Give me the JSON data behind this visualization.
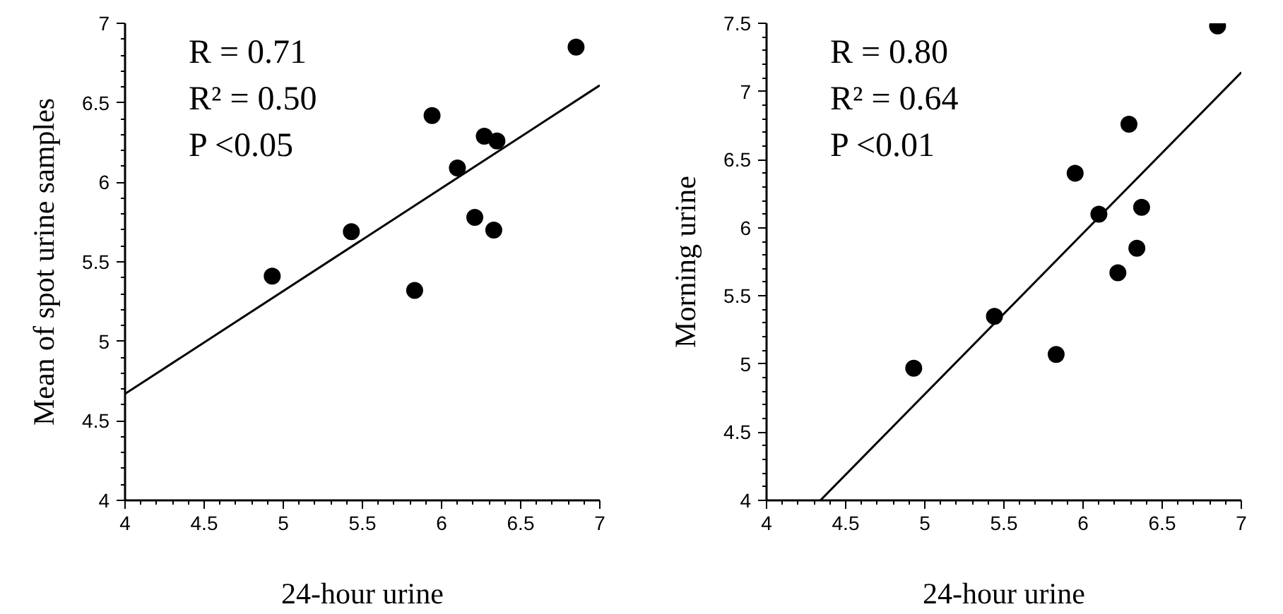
{
  "chart_data": [
    {
      "type": "scatter",
      "xlabel": "24-hour urine",
      "ylabel": "Mean of spot urine samples",
      "annotations": [
        "R = 0.71",
        "R² = 0.50",
        "P <0.05"
      ],
      "marker": "circle",
      "xlim": [
        4,
        7
      ],
      "ylim": [
        4,
        7
      ],
      "xticks": [
        4,
        {
          "value": 4.1,
          "label": null
        },
        {
          "value": 4.2,
          "label": null
        },
        {
          "value": 4.3,
          "label": null
        },
        {
          "value": 4.4,
          "label": null
        },
        4.5,
        {
          "value": 4.6,
          "label": null
        },
        {
          "value": 4.7,
          "label": null
        },
        {
          "value": 4.8,
          "label": null
        },
        {
          "value": 4.9,
          "label": null
        },
        5,
        {
          "value": 5.1,
          "label": null
        },
        {
          "value": 5.2,
          "label": null
        },
        {
          "value": 5.3,
          "label": null
        },
        {
          "value": 5.4,
          "label": null
        },
        5.5,
        {
          "value": 5.6,
          "label": null
        },
        {
          "value": 5.7,
          "label": null
        },
        {
          "value": 5.8,
          "label": null
        },
        {
          "value": 5.9,
          "label": null
        },
        6,
        {
          "value": 6.1,
          "label": null
        },
        {
          "value": 6.2,
          "label": null
        },
        {
          "value": 6.3,
          "label": null
        },
        {
          "value": 6.4,
          "label": null
        },
        6.5,
        {
          "value": 6.6,
          "label": null
        },
        {
          "value": 6.7,
          "label": null
        },
        {
          "value": 6.8,
          "label": null
        },
        {
          "value": 6.9,
          "label": null
        },
        7
      ],
      "yticks": [
        4,
        {
          "value": 4.1,
          "label": null
        },
        {
          "value": 4.2,
          "label": null
        },
        {
          "value": 4.3,
          "label": null
        },
        {
          "value": 4.4,
          "label": null
        },
        4.5,
        {
          "value": 4.6,
          "label": null
        },
        {
          "value": 4.7,
          "label": null
        },
        {
          "value": 4.8,
          "label": null
        },
        {
          "value": 4.9,
          "label": null
        },
        5,
        {
          "value": 5.1,
          "label": null
        },
        {
          "value": 5.2,
          "label": null
        },
        {
          "value": 5.3,
          "label": null
        },
        {
          "value": 5.4,
          "label": null
        },
        5.5,
        {
          "value": 5.6,
          "label": null
        },
        {
          "value": 5.7,
          "label": null
        },
        {
          "value": 5.8,
          "label": null
        },
        {
          "value": 5.9,
          "label": null
        },
        6,
        {
          "value": 6.1,
          "label": null
        },
        {
          "value": 6.2,
          "label": null
        },
        {
          "value": 6.3,
          "label": null
        },
        {
          "value": 6.4,
          "label": null
        },
        6.5,
        {
          "value": 6.6,
          "label": null
        },
        {
          "value": 6.7,
          "label": null
        },
        {
          "value": 6.8,
          "label": null
        },
        {
          "value": 6.9,
          "label": null
        },
        7
      ],
      "series": [
        {
          "color": "#000000",
          "x": [
            4.93,
            5.43,
            5.83,
            5.94,
            6.1,
            6.21,
            6.27,
            6.35,
            6.33,
            6.85
          ],
          "values": [
            5.41,
            5.69,
            5.32,
            6.42,
            6.09,
            5.78,
            6.29,
            6.26,
            5.7,
            6.85
          ]
        },
        {
          "type": "line",
          "marker": "none",
          "color": "#000000",
          "x": [
            4,
            7
          ],
          "values": [
            4.67,
            6.61
          ]
        }
      ]
    },
    {
      "type": "scatter",
      "xlabel": "24-hour urine",
      "ylabel": "Morning urine",
      "annotations": [
        "R = 0.80",
        "R² = 0.64",
        "P <0.01"
      ],
      "marker": "circle",
      "xlim": [
        4,
        7
      ],
      "ylim": [
        4,
        7.5
      ],
      "xticks": [
        4,
        {
          "value": 4.1,
          "label": null
        },
        {
          "value": 4.2,
          "label": null
        },
        {
          "value": 4.3,
          "label": null
        },
        {
          "value": 4.4,
          "label": null
        },
        4.5,
        {
          "value": 4.6,
          "label": null
        },
        {
          "value": 4.7,
          "label": null
        },
        {
          "value": 4.8,
          "label": null
        },
        {
          "value": 4.9,
          "label": null
        },
        5,
        {
          "value": 5.1,
          "label": null
        },
        {
          "value": 5.2,
          "label": null
        },
        {
          "value": 5.3,
          "label": null
        },
        {
          "value": 5.4,
          "label": null
        },
        5.5,
        {
          "value": 5.6,
          "label": null
        },
        {
          "value": 5.7,
          "label": null
        },
        {
          "value": 5.8,
          "label": null
        },
        {
          "value": 5.9,
          "label": null
        },
        6,
        {
          "value": 6.1,
          "label": null
        },
        {
          "value": 6.2,
          "label": null
        },
        {
          "value": 6.3,
          "label": null
        },
        {
          "value": 6.4,
          "label": null
        },
        6.5,
        {
          "value": 6.6,
          "label": null
        },
        {
          "value": 6.7,
          "label": null
        },
        {
          "value": 6.8,
          "label": null
        },
        {
          "value": 6.9,
          "label": null
        },
        7
      ],
      "yticks": [
        4,
        {
          "value": 4.1,
          "label": null
        },
        {
          "value": 4.2,
          "label": null
        },
        {
          "value": 4.3,
          "label": null
        },
        {
          "value": 4.4,
          "label": null
        },
        4.5,
        {
          "value": 4.6,
          "label": null
        },
        {
          "value": 4.7,
          "label": null
        },
        {
          "value": 4.8,
          "label": null
        },
        {
          "value": 4.9,
          "label": null
        },
        5,
        {
          "value": 5.1,
          "label": null
        },
        {
          "value": 5.2,
          "label": null
        },
        {
          "value": 5.3,
          "label": null
        },
        {
          "value": 5.4,
          "label": null
        },
        5.5,
        {
          "value": 5.6,
          "label": null
        },
        {
          "value": 5.7,
          "label": null
        },
        {
          "value": 5.8,
          "label": null
        },
        {
          "value": 5.9,
          "label": null
        },
        6,
        {
          "value": 6.1,
          "label": null
        },
        {
          "value": 6.2,
          "label": null
        },
        {
          "value": 6.3,
          "label": null
        },
        {
          "value": 6.4,
          "label": null
        },
        6.5,
        {
          "value": 6.6,
          "label": null
        },
        {
          "value": 6.7,
          "label": null
        },
        {
          "value": 6.8,
          "label": null
        },
        {
          "value": 6.9,
          "label": null
        },
        7,
        {
          "value": 7.1,
          "label": null
        },
        {
          "value": 7.2,
          "label": null
        },
        {
          "value": 7.3,
          "label": null
        },
        {
          "value": 7.4,
          "label": null
        },
        7.5
      ],
      "series": [
        {
          "color": "#000000",
          "x": [
            4.93,
            5.44,
            5.83,
            5.95,
            6.1,
            6.22,
            6.29,
            6.34,
            6.37,
            6.85
          ],
          "values": [
            4.97,
            5.35,
            5.07,
            6.4,
            6.1,
            5.67,
            6.76,
            5.85,
            6.15,
            7.48
          ]
        },
        {
          "type": "line",
          "marker": "none",
          "color": "#000000",
          "x": [
            4.34,
            7
          ],
          "values": [
            4,
            7.14
          ]
        }
      ]
    }
  ]
}
